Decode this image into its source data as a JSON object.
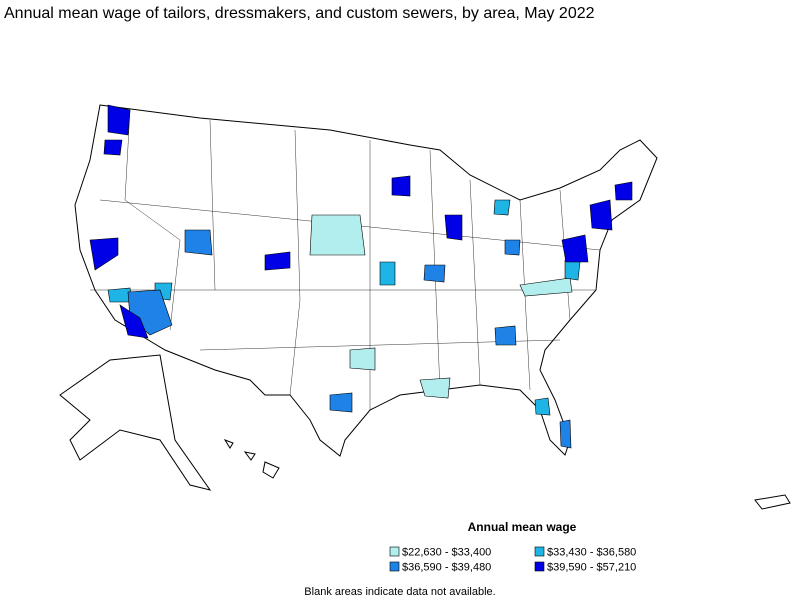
{
  "title": "Annual mean wage of tailors, dressmakers, and custom sewers, by area, May 2022",
  "legend": {
    "title": "Annual mean wage",
    "items": [
      {
        "label": "$22,630 - $33,400",
        "color": "#b2eeee"
      },
      {
        "label": "$33,430 - $36,580",
        "color": "#1eb4e6"
      },
      {
        "label": "$36,590 - $39,480",
        "color": "#1e82e6"
      },
      {
        "label": "$39,590 - $57,210",
        "color": "#0000e6"
      }
    ]
  },
  "note": "Blank areas indicate data not available."
}
